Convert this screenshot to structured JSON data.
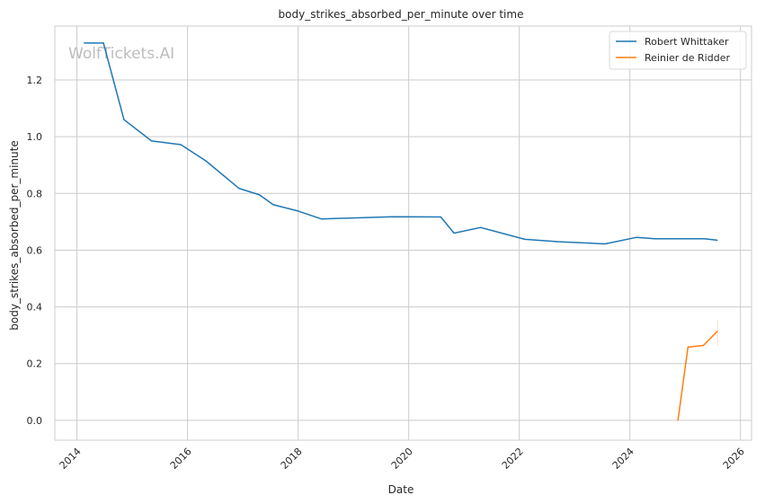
{
  "chart_data": {
    "type": "line",
    "title": "body_strikes_absorbed_per_minute over time",
    "xlabel": "Date",
    "ylabel": "body_strikes_absorbed_per_minute",
    "watermark": "WolfTickets.AI",
    "x_ticks": [
      "2014",
      "2016",
      "2018",
      "2020",
      "2022",
      "2024",
      "2026"
    ],
    "y_ticks": [
      "0.0",
      "0.2",
      "0.4",
      "0.6",
      "0.8",
      "1.0",
      "1.2"
    ],
    "xlim": [
      2013.6,
      2026.2
    ],
    "ylim": [
      -0.07,
      1.39
    ],
    "grid": true,
    "legend_position": "top-right",
    "series": [
      {
        "name": "Robert Whittaker",
        "color": "#1f77b4",
        "points": [
          [
            2014.13,
            1.33
          ],
          [
            2014.48,
            1.33
          ],
          [
            2014.85,
            1.06
          ],
          [
            2015.35,
            0.985
          ],
          [
            2015.88,
            0.972
          ],
          [
            2016.33,
            0.915
          ],
          [
            2016.93,
            0.818
          ],
          [
            2017.3,
            0.795
          ],
          [
            2017.55,
            0.76
          ],
          [
            2018.0,
            0.738
          ],
          [
            2018.42,
            0.71
          ],
          [
            2019.72,
            0.718
          ],
          [
            2020.58,
            0.717
          ],
          [
            2020.82,
            0.66
          ],
          [
            2021.3,
            0.68
          ],
          [
            2022.1,
            0.638
          ],
          [
            2022.7,
            0.63
          ],
          [
            2023.55,
            0.622
          ],
          [
            2024.12,
            0.645
          ],
          [
            2024.45,
            0.64
          ],
          [
            2025.35,
            0.64
          ],
          [
            2025.58,
            0.635
          ]
        ]
      },
      {
        "name": "Reinier de Ridder",
        "color": "#ff7f0e",
        "points": [
          [
            2024.87,
            0.0
          ],
          [
            2025.05,
            0.258
          ],
          [
            2025.33,
            0.264
          ],
          [
            2025.58,
            0.314
          ]
        ]
      }
    ]
  }
}
